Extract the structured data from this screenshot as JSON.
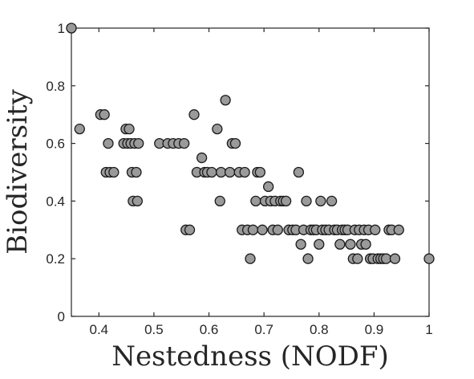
{
  "chart_data": {
    "type": "scatter",
    "title": "",
    "xlabel": "Nestedness (NODF)",
    "ylabel": "Biodiversity",
    "xlim": [
      0.35,
      1.0
    ],
    "ylim": [
      0,
      1
    ],
    "xticks": [
      0.4,
      0.5,
      0.6,
      0.7,
      0.8,
      0.9,
      1
    ],
    "xtick_labels": [
      "0.4",
      "0.5",
      "0.6",
      "0.7",
      "0.8",
      "0.9",
      "1"
    ],
    "yticks": [
      0,
      0.2,
      0.4,
      0.6,
      0.8,
      1
    ],
    "ytick_labels": [
      "0",
      "0.2",
      "0.4",
      "0.6",
      "0.8",
      "1"
    ],
    "grid": false,
    "marker_fill": "#9a9a9a",
    "marker_edge": "#1a1a1a",
    "points": [
      [
        0.35,
        1.0
      ],
      [
        0.365,
        0.65
      ],
      [
        0.403,
        0.7
      ],
      [
        0.41,
        0.7
      ],
      [
        0.413,
        0.5
      ],
      [
        0.417,
        0.6
      ],
      [
        0.42,
        0.5
      ],
      [
        0.427,
        0.5
      ],
      [
        0.445,
        0.6
      ],
      [
        0.449,
        0.65
      ],
      [
        0.452,
        0.6
      ],
      [
        0.455,
        0.65
      ],
      [
        0.458,
        0.6
      ],
      [
        0.46,
        0.5
      ],
      [
        0.462,
        0.4
      ],
      [
        0.465,
        0.6
      ],
      [
        0.468,
        0.5
      ],
      [
        0.47,
        0.4
      ],
      [
        0.472,
        0.6
      ],
      [
        0.51,
        0.6
      ],
      [
        0.525,
        0.6
      ],
      [
        0.535,
        0.6
      ],
      [
        0.545,
        0.6
      ],
      [
        0.555,
        0.6
      ],
      [
        0.558,
        0.3
      ],
      [
        0.565,
        0.3
      ],
      [
        0.573,
        0.7
      ],
      [
        0.578,
        0.5
      ],
      [
        0.587,
        0.55
      ],
      [
        0.592,
        0.5
      ],
      [
        0.597,
        0.5
      ],
      [
        0.605,
        0.5
      ],
      [
        0.615,
        0.65
      ],
      [
        0.62,
        0.4
      ],
      [
        0.622,
        0.5
      ],
      [
        0.63,
        0.75
      ],
      [
        0.638,
        0.5
      ],
      [
        0.642,
        0.6
      ],
      [
        0.648,
        0.6
      ],
      [
        0.655,
        0.5
      ],
      [
        0.66,
        0.3
      ],
      [
        0.665,
        0.5
      ],
      [
        0.67,
        0.3
      ],
      [
        0.675,
        0.2
      ],
      [
        0.68,
        0.3
      ],
      [
        0.685,
        0.4
      ],
      [
        0.688,
        0.5
      ],
      [
        0.693,
        0.5
      ],
      [
        0.697,
        0.3
      ],
      [
        0.702,
        0.4
      ],
      [
        0.708,
        0.45
      ],
      [
        0.712,
        0.4
      ],
      [
        0.716,
        0.3
      ],
      [
        0.72,
        0.4
      ],
      [
        0.725,
        0.3
      ],
      [
        0.73,
        0.4
      ],
      [
        0.735,
        0.4
      ],
      [
        0.74,
        0.4
      ],
      [
        0.745,
        0.3
      ],
      [
        0.752,
        0.3
      ],
      [
        0.758,
        0.3
      ],
      [
        0.763,
        0.5
      ],
      [
        0.767,
        0.25
      ],
      [
        0.772,
        0.3
      ],
      [
        0.777,
        0.4
      ],
      [
        0.78,
        0.2
      ],
      [
        0.785,
        0.3
      ],
      [
        0.79,
        0.3
      ],
      [
        0.795,
        0.3
      ],
      [
        0.8,
        0.25
      ],
      [
        0.803,
        0.4
      ],
      [
        0.806,
        0.3
      ],
      [
        0.812,
        0.3
      ],
      [
        0.818,
        0.3
      ],
      [
        0.823,
        0.4
      ],
      [
        0.828,
        0.3
      ],
      [
        0.833,
        0.3
      ],
      [
        0.838,
        0.25
      ],
      [
        0.842,
        0.3
      ],
      [
        0.847,
        0.3
      ],
      [
        0.852,
        0.3
      ],
      [
        0.857,
        0.25
      ],
      [
        0.862,
        0.2
      ],
      [
        0.865,
        0.3
      ],
      [
        0.87,
        0.2
      ],
      [
        0.873,
        0.3
      ],
      [
        0.877,
        0.25
      ],
      [
        0.882,
        0.3
      ],
      [
        0.885,
        0.25
      ],
      [
        0.89,
        0.3
      ],
      [
        0.893,
        0.2
      ],
      [
        0.898,
        0.2
      ],
      [
        0.902,
        0.3
      ],
      [
        0.907,
        0.2
      ],
      [
        0.912,
        0.2
      ],
      [
        0.917,
        0.2
      ],
      [
        0.922,
        0.2
      ],
      [
        0.927,
        0.3
      ],
      [
        0.932,
        0.3
      ],
      [
        0.938,
        0.2
      ],
      [
        0.945,
        0.3
      ],
      [
        1.0,
        0.2
      ]
    ]
  }
}
